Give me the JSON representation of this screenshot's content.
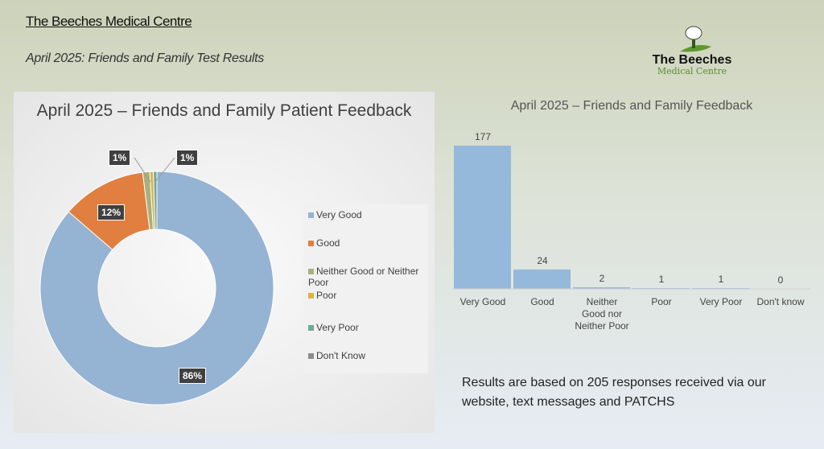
{
  "header": {
    "title": "The Beeches Medical Centre",
    "subtitle": "April 2025: Friends and Family Test Results"
  },
  "logo": {
    "line1": "The Beeches",
    "line2": "Medical Centre"
  },
  "note": "Results are based on 205 responses received via our website, text messages and PATCHS",
  "chart_data": [
    {
      "type": "pie",
      "variant": "donut",
      "title": "April 2025 – Friends and Family Patient Feedback",
      "categories": [
        "Very Good",
        "Good",
        "Neither Good or Neither Poor",
        "Poor",
        "Very Poor",
        "Don't Know"
      ],
      "values": [
        177,
        24,
        2,
        1,
        1,
        0
      ],
      "data_labels": [
        "86%",
        "12%",
        "1%",
        "1%",
        "",
        ""
      ],
      "colors": [
        "#95b3d3",
        "#e07f3f",
        "#a9b07d",
        "#dcb24a",
        "#6fa89b",
        "#8c8c8c"
      ],
      "legend": "right"
    },
    {
      "type": "bar",
      "title": "April 2025 – Friends and Family Feedback",
      "categories": [
        "Very Good",
        "Good",
        "Neither Good nor Neither Poor",
        "Poor",
        "Very Poor",
        "Don't know"
      ],
      "values": [
        177,
        24,
        2,
        1,
        1,
        0
      ],
      "color": "#95b9da",
      "grid": false,
      "ylim": [
        0,
        177
      ]
    }
  ]
}
